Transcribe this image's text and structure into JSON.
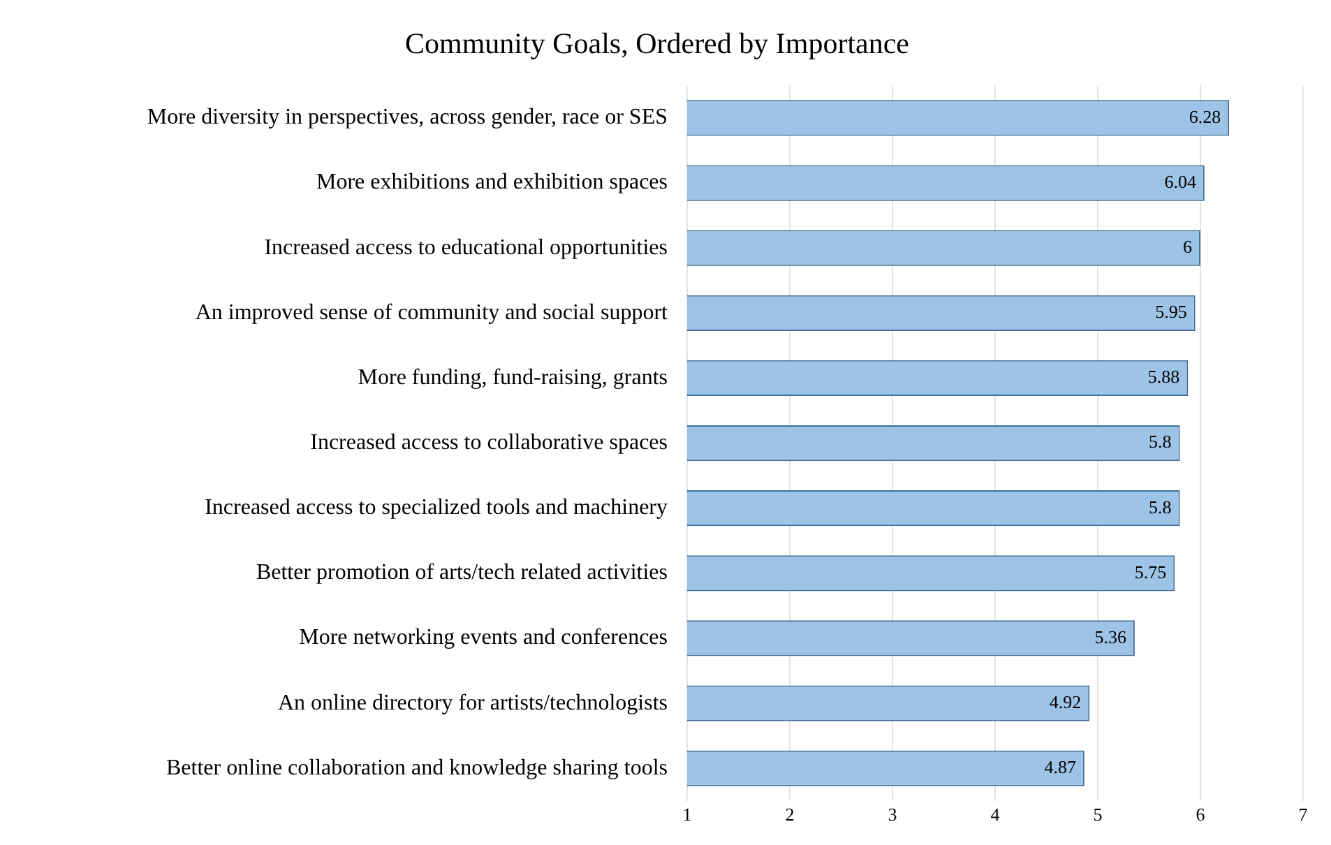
{
  "chart_data": {
    "type": "bar",
    "orientation": "horizontal",
    "title": "Community Goals, Ordered by Importance",
    "categories": [
      "More diversity in perspectives, across gender, race or SES",
      "More exhibitions and exhibition spaces",
      "Increased access to educational opportunities",
      "An improved sense of community and social support",
      "More funding, fund-raising, grants",
      "Increased access to collaborative spaces",
      "Increased access to specialized tools and machinery",
      "Better promotion of arts/tech related activities",
      "More networking events and conferences",
      "An online directory for artists/technologists",
      "Better online collaboration and knowledge sharing tools"
    ],
    "values": [
      6.28,
      6.04,
      6,
      5.95,
      5.88,
      5.8,
      5.8,
      5.75,
      5.36,
      4.92,
      4.87
    ],
    "color": "#9dc3e6",
    "xlim": [
      1,
      7
    ],
    "xticks": [
      1,
      2,
      3,
      4,
      5,
      6,
      7
    ],
    "grid": "x",
    "data_labels": true,
    "legend": false
  }
}
